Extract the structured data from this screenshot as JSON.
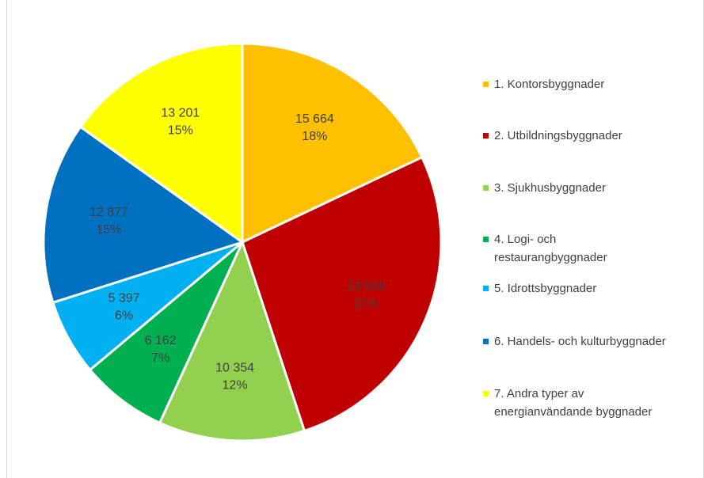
{
  "chart_data": {
    "type": "pie",
    "categories": [
      "1. Kontorsbyggnader",
      "2. Utbildningsbyggnader",
      "3. Sjukhusbyggnader",
      "4. Logi- och restaurangbyggnader",
      "5. Idrottsbyggnader",
      "6. Handels- och kulturbyggnader",
      "7. Andra typer av energianvändande byggnader"
    ],
    "values": [
      15664,
      23508,
      10354,
      6162,
      5397,
      12877,
      13201
    ],
    "value_labels": [
      "15 664",
      "23 508",
      "10 354",
      "6 162",
      "5 397",
      "12 877",
      "13 201"
    ],
    "percent_labels": [
      "18%",
      "27%",
      "12%",
      "7%",
      "6%",
      "15%",
      "15%"
    ],
    "colors": [
      "#FFC000",
      "#C00000",
      "#92D050",
      "#00B050",
      "#00B0F0",
      "#0070C0",
      "#FFFF00"
    ],
    "legend": "right"
  }
}
